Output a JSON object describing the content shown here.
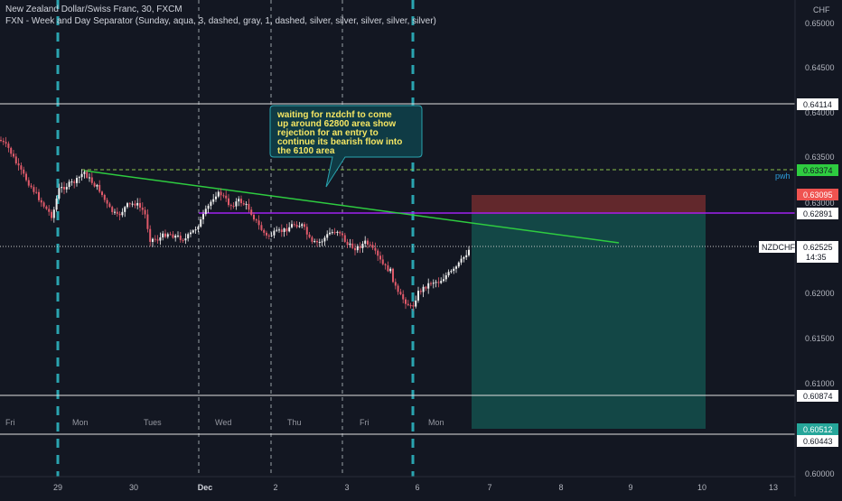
{
  "header": {
    "title": "New Zealand Dollar/Swiss Franc, 30, FXCM",
    "indicator": "FXN - Week and Day Separator (Sunday, aqua, 3, dashed, gray, 1, dashed, silver, silver, silver, silver, silver)"
  },
  "price_axis": {
    "currency": "CHF",
    "ticks": [
      "0.65000",
      "0.64500",
      "0.64000",
      "0.63500",
      "0.63000",
      "0.62500",
      "0.62000",
      "0.61500",
      "0.61000",
      "0.60500",
      "0.60000"
    ],
    "tick_values": [
      0.65,
      0.645,
      0.64,
      0.635,
      0.63,
      0.625,
      0.62,
      0.615,
      0.61,
      0.605,
      0.6
    ]
  },
  "time_axis": {
    "ticks": [
      "29",
      "30",
      "Dec",
      "2",
      "3",
      "6",
      "7",
      "8",
      "9",
      "10",
      "13"
    ],
    "day_labels": [
      "Fri",
      "Mon",
      "Tues",
      "Wed",
      "Thu",
      "Fri",
      "Mon"
    ]
  },
  "levels": {
    "white_lines": [
      "0.64114",
      "0.60874",
      "0.60443"
    ],
    "resistance": "0.63374",
    "purple": "0.62891",
    "stop": "0.63095",
    "target": "0.60512",
    "current": "0.62525",
    "symbol": "NZDCHF",
    "countdown": "14:35",
    "pwh_label": "pwh"
  },
  "annotation": {
    "text_lines": [
      "waiting for nzdchf to come",
      "up around 62800 area show",
      "rejection for an entry to",
      "continue its bearish flow into",
      "the 6100 area"
    ]
  },
  "colors": {
    "background": "#131722",
    "bull_candle": "#f0f0f0",
    "bear_candle": "#e05a6a",
    "week_separator": "#2aa4b0",
    "trendline": "#2ecc40",
    "purple_line": "#a020f0",
    "resistance_line": "#8bc34a",
    "stop_zone": "#6b2a2e",
    "target_zone": "#14504c",
    "callout_bg": "#0f3b45",
    "callout_text": "#f5e663"
  }
}
